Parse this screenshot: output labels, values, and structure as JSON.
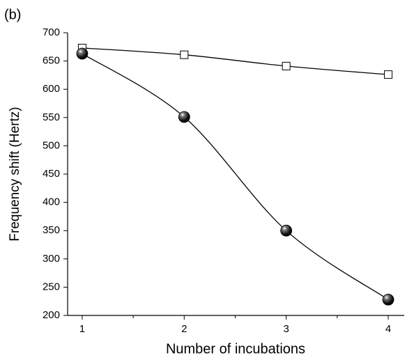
{
  "chart_data": {
    "type": "line",
    "title": "(b)",
    "x_label": "Number of incubations",
    "y_label": "Frequency shift (Hertz)",
    "x": [
      1,
      2,
      3,
      4
    ],
    "series": [
      {
        "color": "#ffffff",
        "marker": "square",
        "values": [
          673,
          661,
          641,
          626
        ]
      },
      {
        "color": "#000000",
        "marker": "sphere",
        "values": [
          663,
          551,
          350,
          228
        ]
      }
    ],
    "xlim": [
      0.857,
      4.157
    ],
    "ylim": [
      200,
      700
    ],
    "xticks": [
      1,
      2,
      3,
      4
    ],
    "x_minor_ticks": [
      1.5,
      2.5,
      3.5
    ],
    "yticks": [
      200,
      250,
      300,
      350,
      400,
      450,
      500,
      550,
      600,
      650,
      700
    ],
    "grid": false,
    "smooth": true
  }
}
